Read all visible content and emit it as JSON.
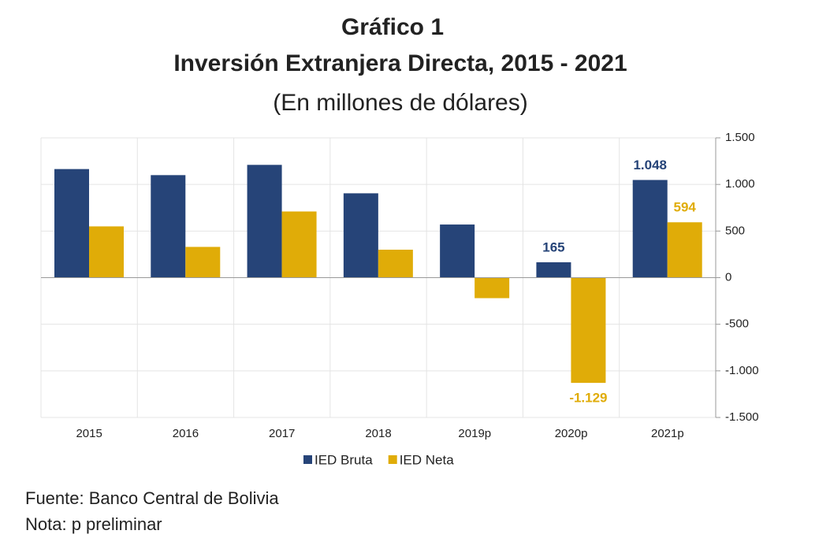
{
  "chart_data": {
    "type": "bar",
    "title": "Gráfico 1",
    "subtitle": "Inversión Extranjera Directa, 2015 - 2021",
    "units": "(En millones de dólares)",
    "categories": [
      "2015",
      "2016",
      "2017",
      "2018",
      "2019p",
      "2020p",
      "2021p"
    ],
    "series": [
      {
        "name": "IED Bruta",
        "color": "#264478",
        "values": [
          1165,
          1100,
          1210,
          905,
          570,
          165,
          1048
        ],
        "value_labels": [
          null,
          null,
          null,
          null,
          null,
          "165",
          "1.048"
        ]
      },
      {
        "name": "IED Neta",
        "color": "#e0ac08",
        "values": [
          550,
          330,
          710,
          300,
          -220,
          -1129,
          594
        ],
        "value_labels": [
          null,
          null,
          null,
          null,
          null,
          "-1.129",
          "594"
        ]
      }
    ],
    "ylim": [
      -1500,
      1500
    ],
    "yticks": [
      {
        "value": 1500,
        "label": "1.500"
      },
      {
        "value": 1000,
        "label": "1.000"
      },
      500,
      0,
      -500,
      {
        "value": -1000,
        "label": "-1.000"
      },
      {
        "value": -1500,
        "label": "-1.500"
      }
    ],
    "grid": true,
    "legend": "bottom",
    "notes": [
      "Fuente: Banco Central de Bolivia",
      "Nota: p preliminar"
    ]
  }
}
